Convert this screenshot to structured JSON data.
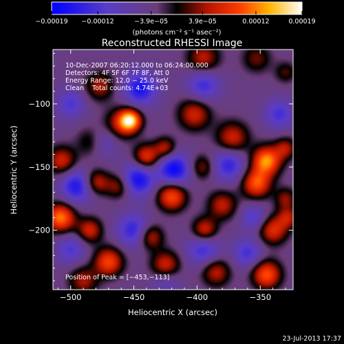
{
  "chart_data": {
    "type": "heatmap",
    "title": "Reconstructed RHESSI Image",
    "xlabel": "Heliocentric X (arcsec)",
    "ylabel": "Heliocentric Y (arcsec)",
    "xlim": [
      -514,
      -324
    ],
    "ylim": [
      -247,
      -57
    ],
    "xticks": [
      -500,
      -450,
      -400,
      -350
    ],
    "yticks": [
      -100,
      -150,
      -200
    ],
    "xtick_labels": [
      "−500",
      "−450",
      "−400",
      "−350"
    ],
    "ytick_labels": [
      "−100",
      "−150",
      "−200"
    ],
    "colorbar": {
      "range": [
        -0.00019,
        0.00019
      ],
      "ticks": [
        -0.00019,
        -0.00012,
        -3.9e-05,
        3.9e-05,
        0.00012,
        0.00019
      ],
      "tick_labels": [
        "−0.00019",
        "−0.00012",
        "−3.9e−05",
        "3.9e−05",
        "0.00012",
        "0.00019"
      ],
      "unit_label": "(photons cm⁻² s⁻¹ asec⁻²)"
    },
    "annotations": [
      "10-Dec-2007 06:20:12.000 to 06:24:00.000",
      "Detectors: 4F 5F 6F 7F 8F, Att 0",
      "Energy Range: 12.0 − 25.0 keV",
      "Clean    Total counts: 4.74E+03",
      "Position of Peak = [−453,−113]"
    ],
    "footer": "23-Jul-2013 17:37",
    "peak": {
      "x": -453,
      "y": -113
    },
    "sources": [
      {
        "x": -453,
        "y": -113,
        "amp": 1.0,
        "sigma": 6
      },
      {
        "x": -461,
        "y": -116,
        "amp": 0.45,
        "sigma": 9
      },
      {
        "x": -477,
        "y": -86,
        "amp": 0.45,
        "sigma": 8
      },
      {
        "x": -395,
        "y": -64,
        "amp": 0.5,
        "sigma": 9
      },
      {
        "x": -353,
        "y": -64,
        "amp": 0.35,
        "sigma": 8
      },
      {
        "x": -330,
        "y": -75,
        "amp": 0.3,
        "sigma": 6
      },
      {
        "x": -402,
        "y": -108,
        "amp": 0.55,
        "sigma": 9
      },
      {
        "x": -372,
        "y": -127,
        "amp": 0.55,
        "sigma": 9
      },
      {
        "x": -345,
        "y": -145,
        "amp": 0.9,
        "sigma": 8
      },
      {
        "x": -330,
        "y": -135,
        "amp": 0.45,
        "sigma": 6
      },
      {
        "x": -507,
        "y": -145,
        "amp": 0.55,
        "sigma": 8
      },
      {
        "x": -483,
        "y": -130,
        "amp": 0.4,
        "sigma": 8
      },
      {
        "x": -440,
        "y": -142,
        "amp": 0.65,
        "sigma": 7
      },
      {
        "x": -425,
        "y": -135,
        "amp": 0.5,
        "sigma": 6
      },
      {
        "x": -396,
        "y": -150,
        "amp": 0.4,
        "sigma": 7
      },
      {
        "x": -480,
        "y": -162,
        "amp": 0.55,
        "sigma": 7
      },
      {
        "x": -462,
        "y": -165,
        "amp": 0.45,
        "sigma": 7
      },
      {
        "x": -420,
        "y": -173,
        "amp": 0.75,
        "sigma": 8
      },
      {
        "x": -380,
        "y": -180,
        "amp": 0.5,
        "sigma": 8
      },
      {
        "x": -353,
        "y": -163,
        "amp": 0.75,
        "sigma": 8
      },
      {
        "x": -330,
        "y": -175,
        "amp": 0.4,
        "sigma": 6
      },
      {
        "x": -508,
        "y": -190,
        "amp": 0.85,
        "sigma": 8
      },
      {
        "x": -485,
        "y": -200,
        "amp": 0.55,
        "sigma": 7
      },
      {
        "x": -437,
        "y": -205,
        "amp": 0.55,
        "sigma": 7
      },
      {
        "x": -394,
        "y": -200,
        "amp": 0.6,
        "sigma": 7
      },
      {
        "x": -340,
        "y": -200,
        "amp": 0.6,
        "sigma": 8
      },
      {
        "x": -328,
        "y": -190,
        "amp": 0.45,
        "sigma": 6
      },
      {
        "x": -470,
        "y": -225,
        "amp": 0.7,
        "sigma": 8
      },
      {
        "x": -425,
        "y": -228,
        "amp": 0.6,
        "sigma": 8
      },
      {
        "x": -385,
        "y": -233,
        "amp": 0.5,
        "sigma": 8
      },
      {
        "x": -345,
        "y": -235,
        "amp": 0.75,
        "sigma": 8
      },
      {
        "x": -490,
        "y": -240,
        "amp": 0.45,
        "sigma": 8
      },
      {
        "x": -495,
        "y": -165,
        "amp": -0.65,
        "sigma": 9
      },
      {
        "x": -445,
        "y": -88,
        "amp": -0.65,
        "sigma": 9
      },
      {
        "x": -418,
        "y": -152,
        "amp": -0.75,
        "sigma": 9
      },
      {
        "x": -447,
        "y": -160,
        "amp": -0.7,
        "sigma": 9
      },
      {
        "x": -475,
        "y": -130,
        "amp": -0.4,
        "sigma": 8
      },
      {
        "x": -375,
        "y": -148,
        "amp": -0.55,
        "sigma": 9
      },
      {
        "x": -395,
        "y": -85,
        "amp": -0.5,
        "sigma": 9
      },
      {
        "x": -335,
        "y": -108,
        "amp": -0.45,
        "sigma": 8
      },
      {
        "x": -450,
        "y": -200,
        "amp": -0.55,
        "sigma": 9
      },
      {
        "x": -395,
        "y": -215,
        "amp": -0.5,
        "sigma": 9
      },
      {
        "x": -360,
        "y": -218,
        "amp": -0.45,
        "sigma": 8
      },
      {
        "x": -500,
        "y": -215,
        "amp": -0.4,
        "sigma": 8
      },
      {
        "x": -500,
        "y": -100,
        "amp": -0.4,
        "sigma": 8
      },
      {
        "x": -355,
        "y": -190,
        "amp": -0.4,
        "sigma": 7
      },
      {
        "x": -425,
        "y": -240,
        "amp": -0.3,
        "sigma": 8
      }
    ],
    "grid": false,
    "legend": "colorbar-top"
  }
}
